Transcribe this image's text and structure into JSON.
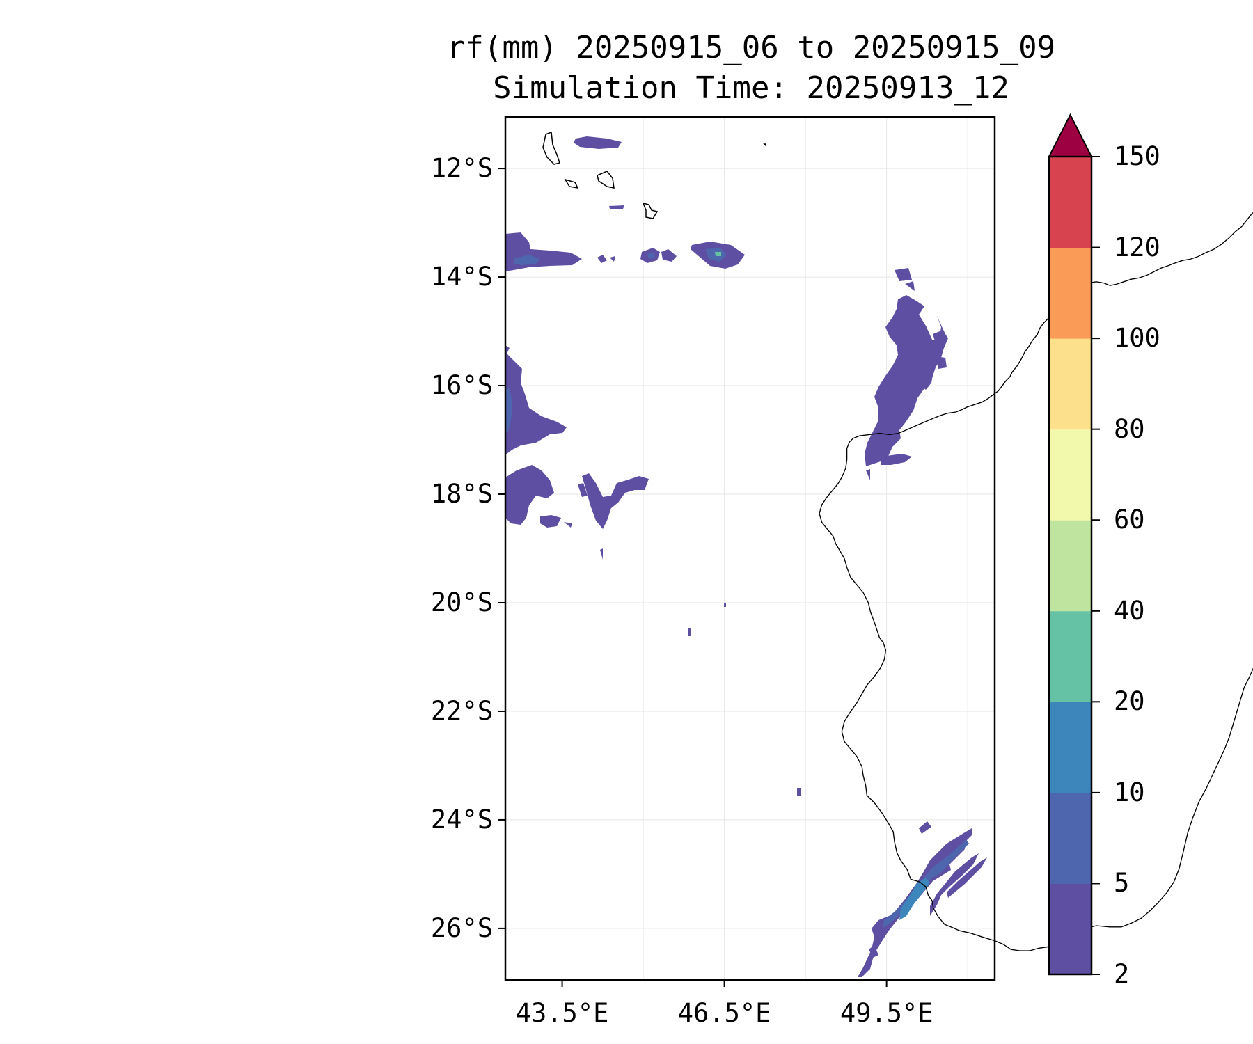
{
  "map": {
    "title_line1": "rf(mm) 20250915_06 to 20250915_09",
    "title_line2": "Simulation Time: 20250913_12",
    "extent": {
      "lon_min": 42.45,
      "lon_max": 51.5,
      "lat_min": -26.95,
      "lat_max": -11.05
    },
    "lat_ticks": [
      {
        "value": -12,
        "label": "12°S"
      },
      {
        "value": -14,
        "label": "14°S"
      },
      {
        "value": -16,
        "label": "16°S"
      },
      {
        "value": -18,
        "label": "18°S"
      },
      {
        "value": -20,
        "label": "20°S"
      },
      {
        "value": -22,
        "label": "22°S"
      },
      {
        "value": -24,
        "label": "24°S"
      },
      {
        "value": -26,
        "label": "26°S"
      }
    ],
    "lon_ticks": [
      {
        "value": 43.5,
        "label": "43.5°E"
      },
      {
        "value": 46.5,
        "label": "46.5°E"
      },
      {
        "value": 49.5,
        "label": "49.5°E"
      }
    ],
    "gridline_lons": [
      43.5,
      45.0,
      46.5,
      48.0,
      49.5,
      51.0
    ],
    "gridline_lats": [
      -12,
      -14,
      -16,
      -18,
      -20,
      -22,
      -24,
      -26
    ],
    "coastline_style": {
      "color": "#000000"
    },
    "grid_style": {
      "color": "#e6e6e6"
    }
  },
  "colorbar": {
    "levels": [
      "2",
      "5",
      "10",
      "20",
      "40",
      "60",
      "80",
      "100",
      "120",
      "150"
    ],
    "colors": [
      "#5e4fa2",
      "#4e66ad",
      "#3d86bb",
      "#66c2a5",
      "#bee4a0",
      "#f3f9ac",
      "#fde08b",
      "#fa9b58",
      "#d7434f"
    ],
    "extend_color": "#9e0142",
    "extend": "max"
  }
}
